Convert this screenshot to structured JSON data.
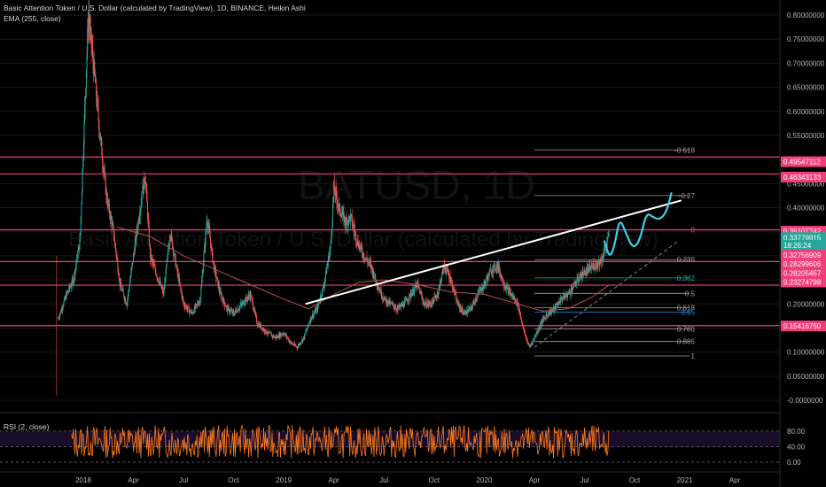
{
  "header": {
    "title": "Basic Attention Token / U.S. Dollar (calculated by TradingView), 1D, BINANCE, Heikin Ashi",
    "indicator": "EMA (255, close)"
  },
  "watermark": {
    "symbol": "BATUSD, 1D",
    "name": "Basic Attention Token / U.S. Dollar (calculated by TradingView)"
  },
  "rsi": {
    "label": "RSI (2, close)",
    "ticks": [
      "80.00",
      "40.00",
      "0.00"
    ],
    "levels": [
      80,
      40,
      0
    ]
  },
  "colors": {
    "up": "#26a69a",
    "down": "#ef5350",
    "hline": "#f23d7a",
    "rsi": "#ff7b1c",
    "projection": "#3ccfe6",
    "ema": "#b4544a"
  },
  "chart_data": {
    "type": "candlestick",
    "ylim": [
      -0.02,
      0.82
    ],
    "y_ticks": [
      "0.80000000",
      "0.75000000",
      "0.70000000",
      "0.65000000",
      "0.60000000",
      "0.55000000",
      "0.50000000",
      "0.45000000",
      "0.40000000",
      "0.35000000",
      "0.30000000",
      "0.25000000",
      "0.20000000",
      "0.15000000",
      "0.10000000",
      "0.05000000",
      "-0.0000000"
    ],
    "y_tick_values": [
      0.8,
      0.75,
      0.7,
      0.65,
      0.6,
      0.55,
      0.5,
      0.45,
      0.4,
      0.35,
      0.3,
      0.25,
      0.2,
      0.15,
      0.1,
      0.05,
      0.0
    ],
    "x_labels": [
      "2018",
      "Apr",
      "Jul",
      "Oct",
      "2019",
      "Apr",
      "Jul",
      "Oct",
      "2020",
      "Apr",
      "Jul",
      "Oct",
      "2021",
      "Apr"
    ],
    "x_label_months": [
      0,
      3,
      6,
      9,
      12,
      15,
      18,
      21,
      24,
      27,
      30,
      33,
      36,
      39
    ],
    "price_path": [
      {
        "m": -1.5,
        "p": 0.17
      },
      {
        "m": -1.0,
        "p": 0.22
      },
      {
        "m": -0.6,
        "p": 0.25
      },
      {
        "m": -0.2,
        "p": 0.33
      },
      {
        "m": 0.1,
        "p": 0.62
      },
      {
        "m": 0.3,
        "p": 0.8
      },
      {
        "m": 0.6,
        "p": 0.7
      },
      {
        "m": 1.0,
        "p": 0.55
      },
      {
        "m": 1.4,
        "p": 0.42
      },
      {
        "m": 1.8,
        "p": 0.35
      },
      {
        "m": 2.2,
        "p": 0.24
      },
      {
        "m": 2.6,
        "p": 0.2
      },
      {
        "m": 3.0,
        "p": 0.3
      },
      {
        "m": 3.4,
        "p": 0.4
      },
      {
        "m": 3.7,
        "p": 0.47
      },
      {
        "m": 4.0,
        "p": 0.3
      },
      {
        "m": 4.4,
        "p": 0.26
      },
      {
        "m": 4.8,
        "p": 0.22
      },
      {
        "m": 5.2,
        "p": 0.35
      },
      {
        "m": 5.6,
        "p": 0.27
      },
      {
        "m": 6.0,
        "p": 0.2
      },
      {
        "m": 6.5,
        "p": 0.18
      },
      {
        "m": 7.0,
        "p": 0.21
      },
      {
        "m": 7.4,
        "p": 0.38
      },
      {
        "m": 7.8,
        "p": 0.28
      },
      {
        "m": 8.2,
        "p": 0.22
      },
      {
        "m": 8.6,
        "p": 0.19
      },
      {
        "m": 9.0,
        "p": 0.18
      },
      {
        "m": 9.5,
        "p": 0.2
      },
      {
        "m": 10.0,
        "p": 0.22
      },
      {
        "m": 10.4,
        "p": 0.16
      },
      {
        "m": 11.0,
        "p": 0.14
      },
      {
        "m": 11.5,
        "p": 0.13
      },
      {
        "m": 12.0,
        "p": 0.14
      },
      {
        "m": 12.4,
        "p": 0.12
      },
      {
        "m": 12.8,
        "p": 0.11
      },
      {
        "m": 13.2,
        "p": 0.13
      },
      {
        "m": 13.6,
        "p": 0.17
      },
      {
        "m": 14.0,
        "p": 0.19
      },
      {
        "m": 14.4,
        "p": 0.24
      },
      {
        "m": 14.8,
        "p": 0.32
      },
      {
        "m": 15.0,
        "p": 0.44
      },
      {
        "m": 15.3,
        "p": 0.4
      },
      {
        "m": 15.7,
        "p": 0.37
      },
      {
        "m": 16.0,
        "p": 0.38
      },
      {
        "m": 16.4,
        "p": 0.33
      },
      {
        "m": 16.8,
        "p": 0.3
      },
      {
        "m": 17.2,
        "p": 0.28
      },
      {
        "m": 17.6,
        "p": 0.24
      },
      {
        "m": 18.0,
        "p": 0.21
      },
      {
        "m": 18.4,
        "p": 0.2
      },
      {
        "m": 18.8,
        "p": 0.19
      },
      {
        "m": 19.2,
        "p": 0.2
      },
      {
        "m": 19.6,
        "p": 0.22
      },
      {
        "m": 20.0,
        "p": 0.24
      },
      {
        "m": 20.4,
        "p": 0.2
      },
      {
        "m": 20.8,
        "p": 0.2
      },
      {
        "m": 21.2,
        "p": 0.22
      },
      {
        "m": 21.6,
        "p": 0.28
      },
      {
        "m": 22.0,
        "p": 0.25
      },
      {
        "m": 22.4,
        "p": 0.2
      },
      {
        "m": 22.8,
        "p": 0.18
      },
      {
        "m": 23.2,
        "p": 0.19
      },
      {
        "m": 23.6,
        "p": 0.22
      },
      {
        "m": 24.0,
        "p": 0.24
      },
      {
        "m": 24.4,
        "p": 0.27
      },
      {
        "m": 24.8,
        "p": 0.28
      },
      {
        "m": 25.2,
        "p": 0.24
      },
      {
        "m": 25.6,
        "p": 0.22
      },
      {
        "m": 26.0,
        "p": 0.2
      },
      {
        "m": 26.4,
        "p": 0.14
      },
      {
        "m": 26.7,
        "p": 0.11
      },
      {
        "m": 27.0,
        "p": 0.13
      },
      {
        "m": 27.4,
        "p": 0.16
      },
      {
        "m": 27.8,
        "p": 0.18
      },
      {
        "m": 28.2,
        "p": 0.19
      },
      {
        "m": 28.6,
        "p": 0.21
      },
      {
        "m": 29.0,
        "p": 0.22
      },
      {
        "m": 29.4,
        "p": 0.24
      },
      {
        "m": 29.8,
        "p": 0.26
      },
      {
        "m": 30.2,
        "p": 0.27
      },
      {
        "m": 30.6,
        "p": 0.28
      },
      {
        "m": 31.0,
        "p": 0.29
      },
      {
        "m": 31.3,
        "p": 0.32
      },
      {
        "m": 31.5,
        "p": 0.35
      }
    ],
    "ema_path": [
      {
        "m": 2,
        "p": 0.36
      },
      {
        "m": 4,
        "p": 0.34
      },
      {
        "m": 6,
        "p": 0.3
      },
      {
        "m": 8,
        "p": 0.27
      },
      {
        "m": 10,
        "p": 0.24
      },
      {
        "m": 12,
        "p": 0.21
      },
      {
        "m": 13.5,
        "p": 0.19
      },
      {
        "m": 15,
        "p": 0.22
      },
      {
        "m": 16.5,
        "p": 0.245
      },
      {
        "m": 18,
        "p": 0.25
      },
      {
        "m": 20,
        "p": 0.24
      },
      {
        "m": 22,
        "p": 0.225
      },
      {
        "m": 24,
        "p": 0.22
      },
      {
        "m": 26,
        "p": 0.2
      },
      {
        "m": 27.5,
        "p": 0.185
      },
      {
        "m": 29,
        "p": 0.19
      },
      {
        "m": 30.5,
        "p": 0.215
      },
      {
        "m": 31.5,
        "p": 0.24
      }
    ],
    "trendline": {
      "x1": 13.3,
      "y1": 0.2,
      "x2": 35.8,
      "y2": 0.415
    },
    "dashed_line": {
      "x1": 27.0,
      "y1": 0.11,
      "x2": 35.6,
      "y2": 0.33
    },
    "projection_path": [
      {
        "m": 31.2,
        "p": 0.33
      },
      {
        "m": 31.5,
        "p": 0.295
      },
      {
        "m": 31.8,
        "p": 0.32
      },
      {
        "m": 32.1,
        "p": 0.38
      },
      {
        "m": 32.5,
        "p": 0.345
      },
      {
        "m": 32.9,
        "p": 0.315
      },
      {
        "m": 33.3,
        "p": 0.33
      },
      {
        "m": 33.7,
        "p": 0.39
      },
      {
        "m": 34.1,
        "p": 0.38
      },
      {
        "m": 34.5,
        "p": 0.375
      },
      {
        "m": 34.9,
        "p": 0.39
      },
      {
        "m": 35.2,
        "p": 0.43
      }
    ],
    "fib_levels": [
      {
        "label": "-0.618",
        "price": 0.52,
        "color": "#9e9e9e"
      },
      {
        "label": "-0.27",
        "price": 0.425,
        "color": "#9e9e9e"
      },
      {
        "label": "0",
        "price": 0.354,
        "color": "#f23d7a"
      },
      {
        "label": "0.236",
        "price": 0.292,
        "color": "#9e9e9e"
      },
      {
        "label": "0.382",
        "price": 0.254,
        "color": "#26a69a"
      },
      {
        "label": "0.5",
        "price": 0.222,
        "color": "#9e9e9e"
      },
      {
        "label": "0.618",
        "price": 0.192,
        "color": "#9e9e9e"
      },
      {
        "label": "0.65",
        "price": 0.183,
        "color": "#2196f3"
      },
      {
        "label": "0.786",
        "price": 0.148,
        "color": "#9e9e9e"
      },
      {
        "label": "0.886",
        "price": 0.122,
        "color": "#9e9e9e"
      },
      {
        "label": "1",
        "price": 0.092,
        "color": "#9e9e9e"
      }
    ],
    "horizontal_lines": [
      0.505,
      0.47,
      0.354,
      0.288,
      0.239,
      0.155
    ],
    "price_badges": [
      {
        "label": "0.49547112",
        "price": 0.4955,
        "color": "#f23d7a"
      },
      {
        "label": "0.46343133",
        "price": 0.4634,
        "color": "#f23d7a"
      },
      {
        "label": "0.35107742",
        "price": 0.3511,
        "color": "#f23d7a"
      },
      {
        "label": "0.33779915",
        "price": 0.3378,
        "color": "#26a69a"
      },
      {
        "label": "18:26:24",
        "price": 0.322,
        "color": "#26a69a"
      },
      {
        "label": "0.32756909",
        "price": 0.3016,
        "color": "#f23d7a"
      },
      {
        "label": "0.28299606",
        "price": 0.283,
        "color": "#f23d7a"
      },
      {
        "label": "0.28205457",
        "price": 0.2643,
        "color": "#f23d7a"
      },
      {
        "label": "0.23274798",
        "price": 0.2456,
        "color": "#f23d7a"
      },
      {
        "label": "0.15416750",
        "price": 0.1542,
        "color": "#f23d7a"
      }
    ]
  }
}
